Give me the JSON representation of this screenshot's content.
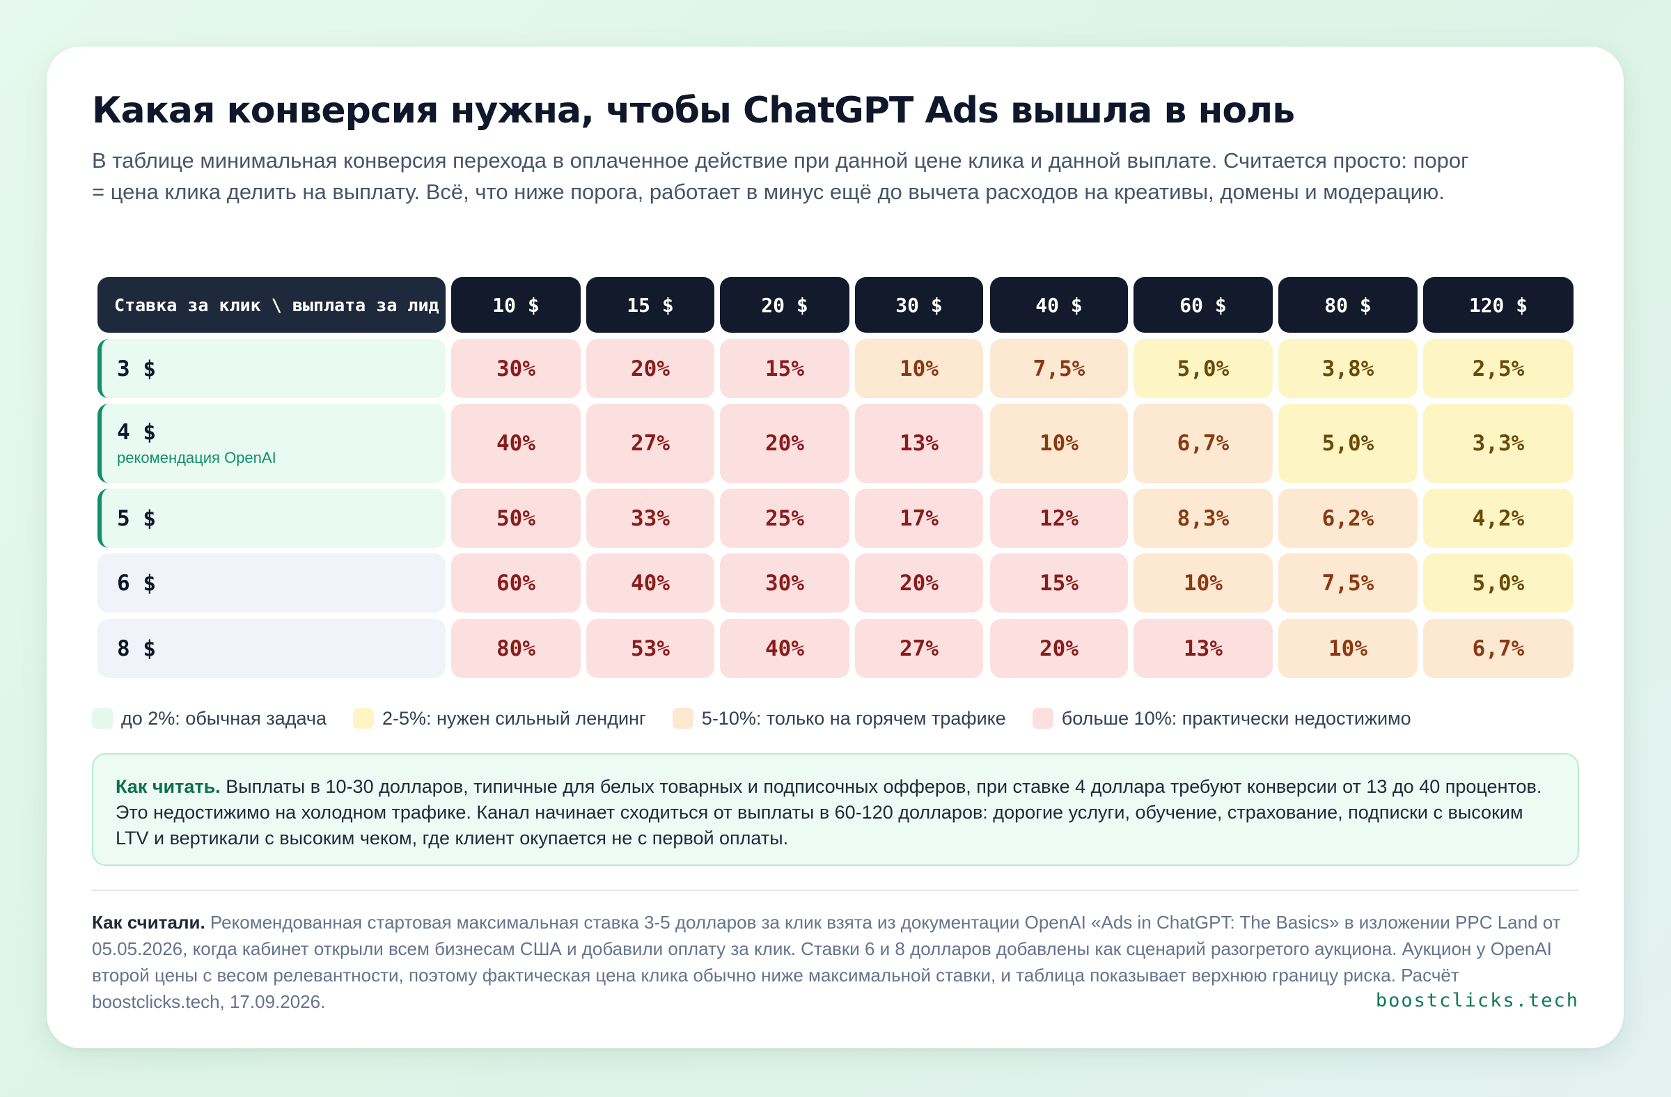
{
  "title": "Какая конверсия нужна, чтобы ChatGPT Ads вышла в ноль",
  "lead": "В таблице минимальная конверсия перехода в оплаченное действие при данной цене клика и данной выплате. Считается просто: порог = цена клика делить на выплату. Всё, что ниже порога, работает в минус ещё до вычета расходов на креативы, домены и модерацию.",
  "table": {
    "corner_label": "Ставка за клик \\ выплата за лид",
    "columns": [
      "10 $",
      "15 $",
      "20 $",
      "30 $",
      "40 $",
      "60 $",
      "80 $",
      "120 $"
    ],
    "rows": [
      {
        "bid": "3 $",
        "note": "",
        "recommended": true,
        "values": [
          "30%",
          "20%",
          "15%",
          "10%",
          "7,5%",
          "5,0%",
          "3,8%",
          "2,5%"
        ]
      },
      {
        "bid": "4 $",
        "note": "рекомендация OpenAI",
        "recommended": true,
        "values": [
          "40%",
          "27%",
          "20%",
          "13%",
          "10%",
          "6,7%",
          "5,0%",
          "3,3%"
        ]
      },
      {
        "bid": "5 $",
        "note": "",
        "recommended": true,
        "values": [
          "50%",
          "33%",
          "25%",
          "17%",
          "12%",
          "8,3%",
          "6,2%",
          "4,2%"
        ]
      },
      {
        "bid": "6 $",
        "note": "",
        "recommended": false,
        "values": [
          "60%",
          "40%",
          "30%",
          "20%",
          "15%",
          "10%",
          "7,5%",
          "5,0%"
        ]
      },
      {
        "bid": "8 $",
        "note": "",
        "recommended": false,
        "values": [
          "80%",
          "53%",
          "40%",
          "27%",
          "20%",
          "13%",
          "10%",
          "6,7%"
        ]
      }
    ],
    "cell_bands": [
      [
        "red",
        "red",
        "red",
        "orange",
        "orange",
        "yellow",
        "yellow",
        "yellow"
      ],
      [
        "red",
        "red",
        "red",
        "red",
        "orange",
        "orange",
        "yellow",
        "yellow"
      ],
      [
        "red",
        "red",
        "red",
        "red",
        "red",
        "orange",
        "orange",
        "yellow"
      ],
      [
        "red",
        "red",
        "red",
        "red",
        "red",
        "orange",
        "orange",
        "yellow"
      ],
      [
        "red",
        "red",
        "red",
        "red",
        "red",
        "red",
        "orange",
        "orange"
      ]
    ]
  },
  "band_colors": {
    "green": {
      "bg": "#e4f8ee",
      "fg": "#166534"
    },
    "yellow": {
      "bg": "#fdf6c4",
      "fg": "#6b4b08"
    },
    "orange": {
      "bg": "#fde8d2",
      "fg": "#8a3a12"
    },
    "red": {
      "bg": "#fbe0df",
      "fg": "#8b1c1c"
    }
  },
  "legend": [
    {
      "band": "green",
      "label": "до 2%: обычная задача"
    },
    {
      "band": "yellow",
      "label": "2-5%: нужен сильный лендинг"
    },
    {
      "band": "orange",
      "label": "5-10%: только на горячем трафике"
    },
    {
      "band": "red",
      "label": "больше 10%: практически недостижимо"
    }
  ],
  "note": {
    "lead": "Как читать.",
    "text": "Выплаты в 10-30 долларов, типичные для белых товарных и подписочных офферов, при ставке 4 доллара требуют конверсии от 13 до 40 процентов. Это недостижимо на холодном трафике. Канал начинает сходиться от выплаты в 60-120 долларов: дорогие услуги, обучение, страхование, подписки с высоким LTV и вертикали с высоким чеком, где клиент окупается не с первой оплаты."
  },
  "method": {
    "lead": "Как считали.",
    "text": "Рекомендованная стартовая максимальная ставка 3-5 долларов за клик взята из документации OpenAI «Ads in ChatGPT: The Basics» в изложении PPC Land от 05.05.2026, когда кабинет открыли всем бизнесам США и добавили оплату за клик. Ставки 6 и 8 долларов добавлены как сценарий разогретого аукциона. Аукцион у OpenAI второй цены с весом релевантности, поэтому фактическая цена клика обычно ниже максимальной ставки, и таблица показывает верхнюю границу риска. Расчёт boostclicks.tech, 17.09.2026."
  },
  "brand": "boostclicks.tech"
}
